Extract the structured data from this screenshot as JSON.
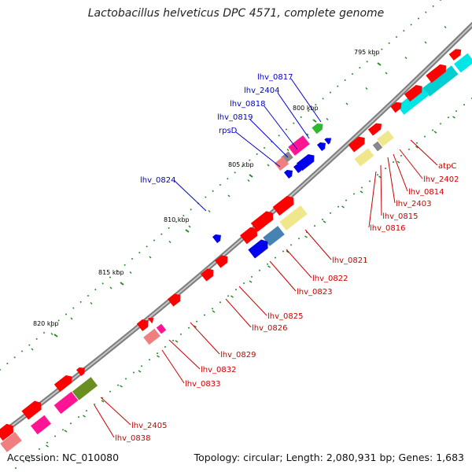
{
  "title": "Lactobacillus helveticus DPC 4571, complete genome",
  "footer": {
    "accession": "Accession: NC_010080",
    "summary": "Topology: circular; Length: 2,080,931 bp; Genes: 1,683"
  },
  "colors": {
    "backbone": "#8a8a8a",
    "tick": "#2a8a2a",
    "cds": "#ff0000",
    "trna": "#0000ee",
    "rrna": "#ff1493",
    "pseudo": "#f0e68c",
    "label_blue": "#0000cc",
    "label_red": "#cc0000"
  },
  "kbp_labels": [
    "795 kbp",
    "800 kbp",
    "805 kbp",
    "810 kbp",
    "815 kbp",
    "820 kbp"
  ],
  "gene_labels_blue": [
    "lhv_0817",
    "lhv_2404",
    "lhv_0818",
    "lhv_0819",
    "rpsD",
    "lhv_0824"
  ],
  "gene_labels_red": [
    "atpC",
    "lhv_2402",
    "lhv_0814",
    "lhv_2403",
    "lhv_0815",
    "lhv_0816",
    "lhv_0821",
    "lhv_0822",
    "lhv_0823",
    "lhv_0825",
    "lhv_0826",
    "lhv_0829",
    "lhv_0832",
    "lhv_0833",
    "lhv_2405",
    "lhv_0838"
  ]
}
